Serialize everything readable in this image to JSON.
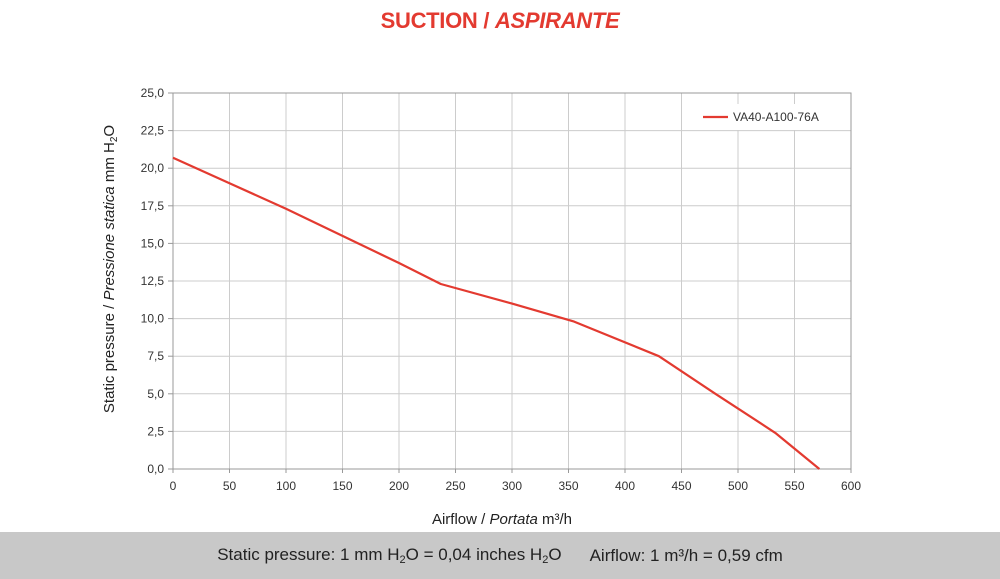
{
  "colors": {
    "title": "#e33a30",
    "series": "#e33a30",
    "grid": "#cccccc",
    "axis": "#999999",
    "text": "#333333"
  },
  "title": {
    "part1": "SUCTION / ",
    "part2": "ASPIRANTE"
  },
  "axes": {
    "y_label_part1": "Static pressure / ",
    "y_label_italic": "Pressione statica",
    "y_label_unit": " mm  H",
    "y_label_sub": "2",
    "y_label_unit_end": "O",
    "x_label_part1": "Airflow / ",
    "x_label_italic": "Portata",
    "x_label_unit": "  m³/h"
  },
  "footer": {
    "pressure_a": "Static pressure: 1 mm H",
    "pressure_sub1": "2",
    "pressure_b": "O = 0,04 inches H",
    "pressure_sub2": "2",
    "pressure_c": "O",
    "airflow": "Airflow: 1 m³/h = 0,59 cfm"
  },
  "chart_data": {
    "type": "line",
    "title": "SUCTION / ASPIRANTE",
    "xlabel": "Airflow / Portata m³/h",
    "ylabel": "Static pressure / Pressione statica mm H2O",
    "xlim": [
      0,
      600
    ],
    "ylim": [
      0,
      25
    ],
    "x_ticks": [
      0,
      50,
      100,
      150,
      200,
      250,
      300,
      350,
      400,
      450,
      500,
      550,
      600
    ],
    "x_tick_labels": [
      "0",
      "50",
      "100",
      "150",
      "200",
      "250",
      "300",
      "350",
      "400",
      "450",
      "500",
      "550",
      "600"
    ],
    "y_ticks": [
      0,
      2.5,
      5,
      7.5,
      10,
      12.5,
      15,
      17.5,
      20,
      22.5,
      25
    ],
    "y_tick_labels": [
      "0,0",
      "2,5",
      "5,0",
      "7,5",
      "10,0",
      "12,5",
      "15,0",
      "17,5",
      "20,0",
      "22,5",
      "25,0"
    ],
    "grid": true,
    "legend": "top-right",
    "series": [
      {
        "name": "VA40-A100-76A",
        "x": [
          0,
          50,
          100,
          150,
          200,
          237,
          300,
          355,
          430,
          480,
          533,
          572
        ],
        "y": [
          20.7,
          19.0,
          17.3,
          15.5,
          13.7,
          12.3,
          11.0,
          9.8,
          7.5,
          5.0,
          2.4,
          0.0
        ]
      }
    ]
  }
}
